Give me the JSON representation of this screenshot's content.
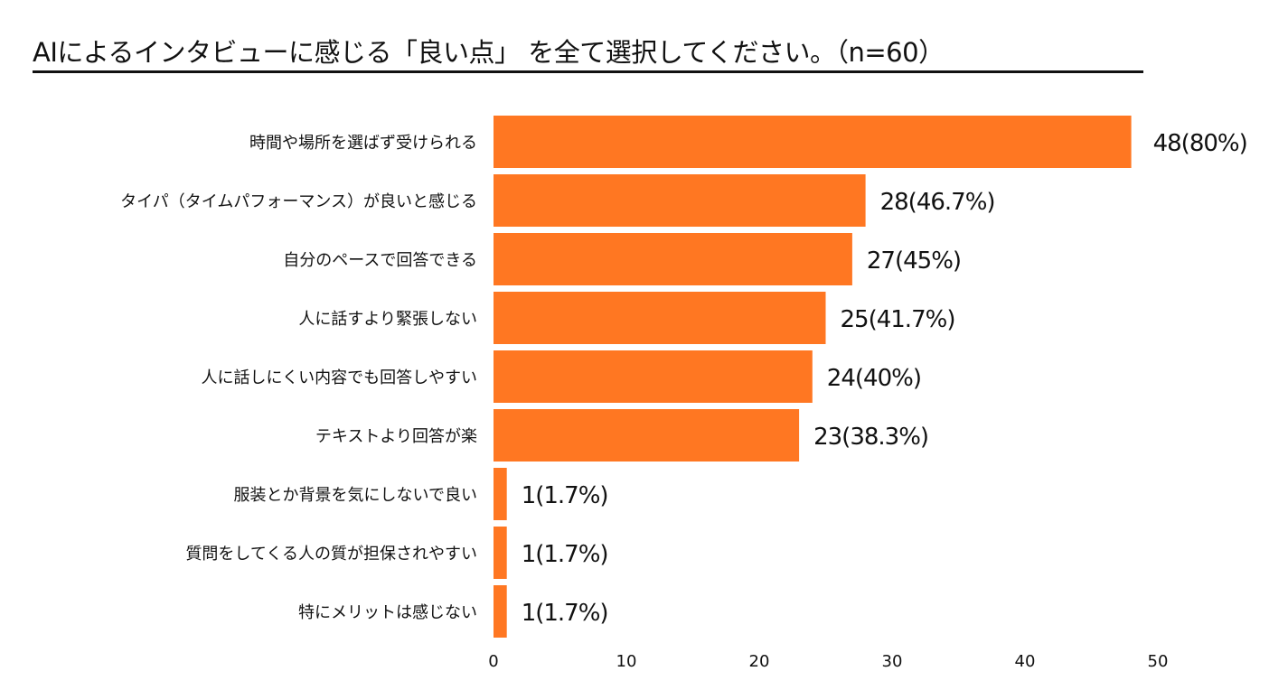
{
  "chart_data": {
    "type": "bar",
    "orientation": "horizontal",
    "title": "AIによるインタビューに感じる「良い点」 を全て選択してください。（n=60）",
    "categories": [
      "時間や場所を選ばず受けられる",
      "タイパ（タイムパフォーマンス）が良いと感じる",
      "自分のペースで回答できる",
      "人に話すより緊張しない",
      "人に話しにくい内容でも回答しやすい",
      "テキストより回答が楽",
      "服装とか背景を気にしないで良い",
      "質問をしてくる人の質が担保されやすい",
      "特にメリットは感じない"
    ],
    "values": [
      48,
      28,
      27,
      25,
      24,
      23,
      1,
      1,
      1
    ],
    "data_labels": [
      "48(80%)",
      "28(46.7%)",
      "27(45%)",
      "25(41.7%)",
      "24(40%)",
      "23(38.3%)",
      "1(1.7%)",
      "1(1.7%)",
      "1(1.7%)"
    ],
    "xlim": [
      0,
      50
    ],
    "xticks": [
      "0",
      "10",
      "20",
      "30",
      "40",
      "50"
    ],
    "xlabel": "",
    "ylabel": "",
    "grid": false,
    "legend": "none",
    "bar_color": "#FF7722"
  }
}
